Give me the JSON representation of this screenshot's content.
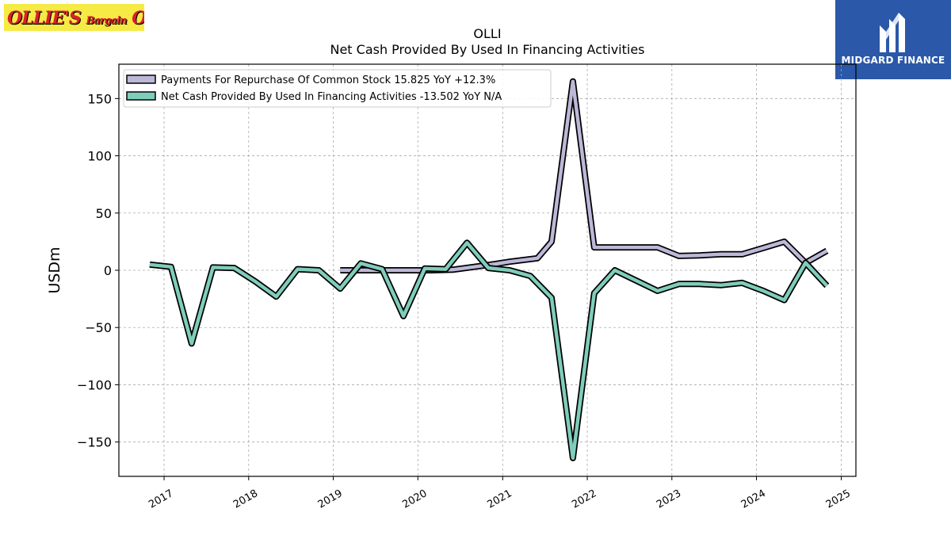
{
  "header": {
    "left_logo_text": "OLLIE'S Bargain OUTLET",
    "right_logo_text": "MIDGARD FINANCE"
  },
  "chart_data": {
    "type": "line",
    "title": "OLLI",
    "subtitle": "Net Cash Provided By Used In Financing Activities",
    "xlabel": "",
    "ylabel": "USDm",
    "ylim": [
      -180,
      180
    ],
    "xlim": [
      "2016-06-20",
      "2025-03-05"
    ],
    "grid": true,
    "legend_position": "top-left",
    "yticks": [
      -150,
      -100,
      -50,
      0,
      50,
      100,
      150
    ],
    "ytick_labels": [
      "−150",
      "−100",
      "−50",
      "0",
      "50",
      "100",
      "150"
    ],
    "xticks": [
      "2017",
      "2018",
      "2019",
      "2020",
      "2021",
      "2022",
      "2023",
      "2024",
      "2025"
    ],
    "series": [
      {
        "name": "Payments For Repurchase Of Common Stock",
        "legend_label": "Payments For Repurchase Of Common Stock  15.825 YoY +12.3%",
        "color": "#bcb8d8",
        "x": [
          "2019-01-31",
          "2019-05-31",
          "2019-08-31",
          "2019-11-30",
          "2020-02-29",
          "2020-05-31",
          "2020-08-31",
          "2020-11-30",
          "2021-01-31",
          "2021-05-31",
          "2021-07-31",
          "2021-10-31",
          "2022-01-31",
          "2022-04-30",
          "2022-07-31",
          "2022-10-31",
          "2023-01-31",
          "2023-04-30",
          "2023-07-31",
          "2023-10-31",
          "2024-01-31",
          "2024-04-30",
          "2024-07-31",
          "2024-10-31"
        ],
        "y": [
          0.0,
          0.0,
          0.0,
          0.0,
          0.0,
          0.5,
          3.0,
          5.5,
          7.5,
          10.5,
          25.0,
          165.0,
          20.0,
          20.0,
          20.0,
          20.0,
          12.5,
          13.0,
          14.0,
          14.0,
          19.5,
          25.0,
          6.5,
          17.0
        ]
      },
      {
        "name": "Net Cash Provided By Used In Financing Activities",
        "legend_label": "Net Cash Provided By Used In Financing Activities  -13.502 YoY N/A",
        "color": "#7fcdbb",
        "x": [
          "2016-10-31",
          "2017-01-31",
          "2017-04-30",
          "2017-07-31",
          "2017-10-31",
          "2018-01-31",
          "2018-04-30",
          "2018-07-31",
          "2018-10-31",
          "2019-01-31",
          "2019-04-30",
          "2019-07-31",
          "2019-10-31",
          "2020-01-31",
          "2020-04-30",
          "2020-07-31",
          "2020-10-31",
          "2021-01-31",
          "2021-04-30",
          "2021-07-31",
          "2021-10-31",
          "2022-01-31",
          "2022-04-30",
          "2022-07-31",
          "2022-10-31",
          "2023-01-31",
          "2023-04-30",
          "2023-07-31",
          "2023-10-31",
          "2024-01-31",
          "2024-04-30",
          "2024-07-31",
          "2024-10-31"
        ],
        "y": [
          5.0,
          3.0,
          -64.0,
          2.5,
          2.0,
          -10.0,
          -23.0,
          1.0,
          0.0,
          -16.0,
          6.0,
          1.0,
          -40.0,
          1.5,
          1.0,
          24.0,
          2.0,
          0.0,
          -5.0,
          -24.0,
          -164.0,
          -20.0,
          0.0,
          -9.0,
          -18.0,
          -12.0,
          -12.0,
          -13.0,
          -11.0,
          -18.0,
          -26.0,
          6.5,
          -13.5
        ]
      }
    ]
  }
}
